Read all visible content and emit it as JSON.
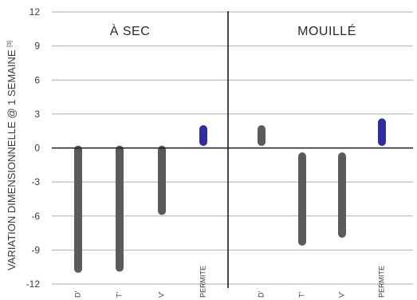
{
  "chart_data": {
    "type": "range-bar",
    "ylabel": "VARIATION DIMENSIONNELLE @ 1 SEMAINE",
    "ylabel_note": "[3]",
    "ylim": [
      -12,
      12
    ],
    "yticks": [
      12,
      9,
      6,
      3,
      0,
      -3,
      -6,
      -9,
      -12
    ],
    "grid": true,
    "colors": {
      "default": "#5b5b5b",
      "highlight": "#2e2e9c",
      "grid": "#a9a9cf"
    },
    "panels": [
      {
        "title": "À SEC",
        "categories": [
          "D'",
          "T'",
          "V'",
          "PERMITE"
        ],
        "ranges": [
          {
            "category": "D'",
            "low": -10.8,
            "high": 0.0,
            "color": "#5b5b5b"
          },
          {
            "category": "T'",
            "low": -10.7,
            "high": 0.0,
            "color": "#5b5b5b"
          },
          {
            "category": "V'",
            "low": -5.7,
            "high": 0.0,
            "color": "#5b5b5b"
          },
          {
            "category": "PERMITE",
            "low": 0.4,
            "high": 1.8,
            "color": "#2e2e9c"
          }
        ]
      },
      {
        "title": "MOUILLÉ",
        "categories": [
          "D'",
          "T'",
          "V'",
          "PERMITE"
        ],
        "ranges": [
          {
            "category": "D'",
            "low": 0.4,
            "high": 1.8,
            "color": "#5b5b5b"
          },
          {
            "category": "T'",
            "low": -8.4,
            "high": -0.6,
            "color": "#5b5b5b"
          },
          {
            "category": "V'",
            "low": -7.7,
            "high": -0.6,
            "color": "#5b5b5b"
          },
          {
            "category": "PERMITE",
            "low": 0.4,
            "high": 2.4,
            "color": "#2e2e9c"
          }
        ]
      }
    ]
  }
}
